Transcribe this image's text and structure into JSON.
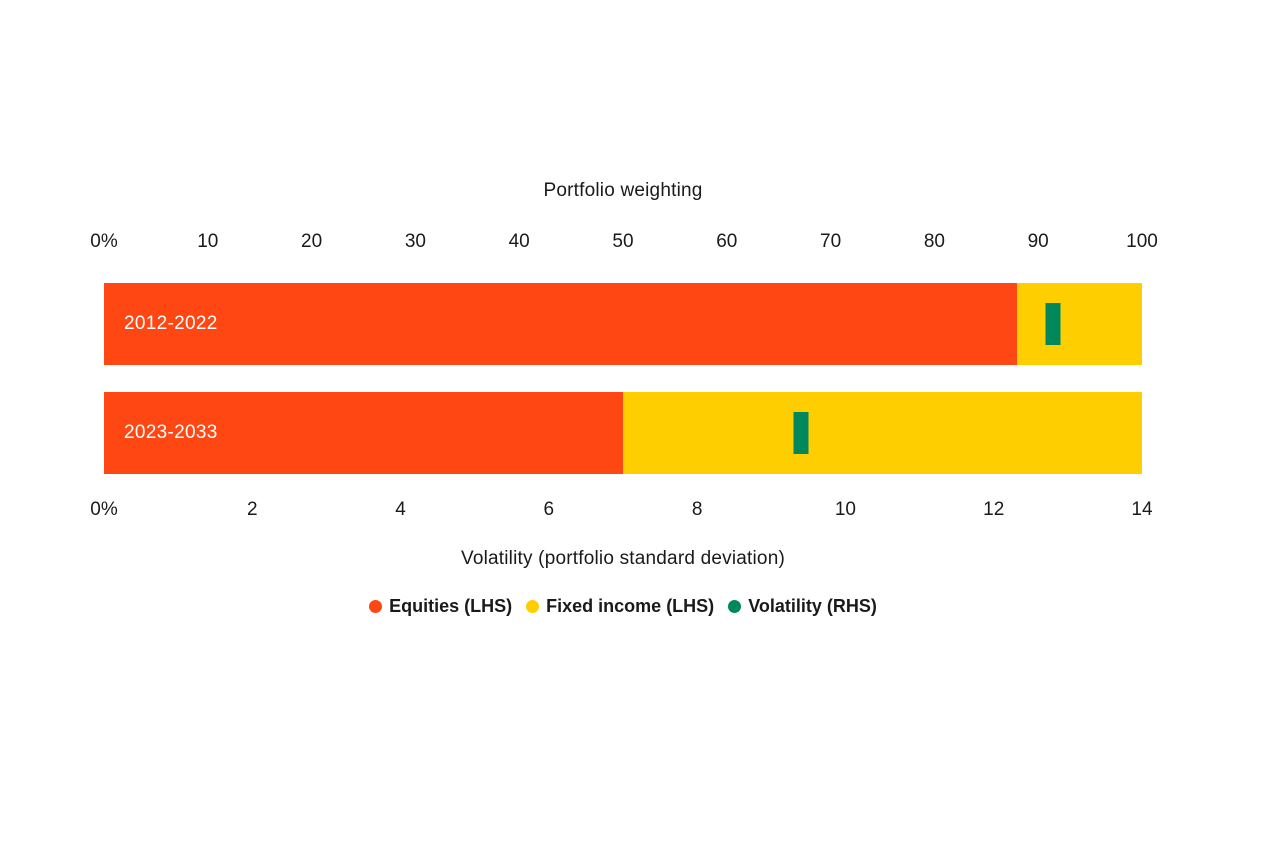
{
  "chart_data": {
    "type": "bar",
    "orientation": "horizontal-stacked",
    "top_axis_title": "Portfolio weighting",
    "bottom_axis_title": "Volatility (portfolio standard deviation)",
    "categories": [
      "2012-2022",
      "2023-2033"
    ],
    "series": [
      {
        "name": "Equities (LHS)",
        "axis": "top (portfolio weighting %)",
        "values": [
          88,
          50
        ],
        "color": "#FF4713"
      },
      {
        "name": "Fixed income (LHS)",
        "axis": "top (portfolio weighting %)",
        "values": [
          12,
          50
        ],
        "color": "#FFCE00"
      },
      {
        "name": "Volatility (RHS)",
        "axis": "bottom (standard deviation %)",
        "values": [
          12.8,
          9.4
        ],
        "color": "#00885C"
      }
    ],
    "axis_top": {
      "min": 0,
      "max": 100,
      "tick_labels": [
        "0%",
        "10",
        "20",
        "30",
        "40",
        "50",
        "60",
        "70",
        "80",
        "90",
        "100"
      ],
      "tick_values": [
        0,
        10,
        20,
        30,
        40,
        50,
        60,
        70,
        80,
        90,
        100
      ]
    },
    "axis_bottom": {
      "min": 0,
      "max": 14,
      "tick_labels": [
        "0%",
        "2",
        "4",
        "6",
        "8",
        "10",
        "12",
        "14"
      ],
      "tick_values": [
        0,
        2,
        4,
        6,
        8,
        10,
        12,
        14
      ]
    },
    "legend": [
      {
        "label": "Equities (LHS)",
        "color": "#FF4713"
      },
      {
        "label": "Fixed income (LHS)",
        "color": "#FFCE00"
      },
      {
        "label": "Volatility (RHS)",
        "color": "#00885C"
      }
    ],
    "grid": false,
    "legend_position": "bottom-center",
    "colors": {
      "equities": "#FF4713",
      "fixed_income": "#FFCE00",
      "volatility": "#00885C",
      "text": "#1a1a1a",
      "bar_label_text": "#ffffff",
      "background": "#ffffff"
    }
  }
}
